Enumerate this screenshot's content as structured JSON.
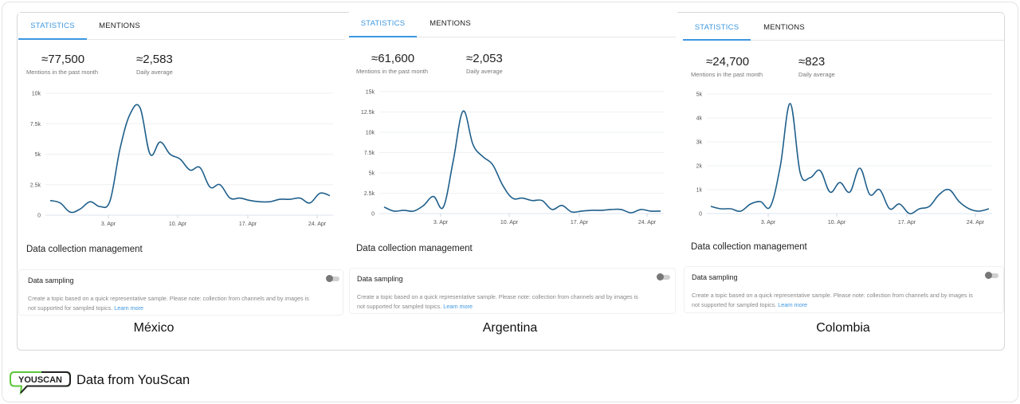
{
  "panels": [
    {
      "country": "México",
      "tabs": [
        {
          "label": "STATISTICS",
          "active": true
        },
        {
          "label": "MENTIONS",
          "active": false
        }
      ],
      "stats": {
        "mentions_value": "≈77,500",
        "mentions_label": "Mentions in the past month",
        "daily_value": "≈2,583",
        "daily_label": "Daily average"
      },
      "section_title": "Data collection management",
      "sampling": {
        "title": "Data sampling",
        "description": "Create a topic based on a quick representative sample. Please note: collection from channels and by images is not supported for sampled topics.",
        "link": "Learn more",
        "toggle_on": false
      }
    },
    {
      "country": "Argentina",
      "tabs": [
        {
          "label": "STATISTICS",
          "active": true
        },
        {
          "label": "MENTIONS",
          "active": false
        }
      ],
      "stats": {
        "mentions_value": "≈61,600",
        "mentions_label": "Mentions in the past month",
        "daily_value": "≈2,053",
        "daily_label": "Daily average"
      },
      "section_title": "Data collection management",
      "sampling": {
        "title": "Data sampling",
        "description": "Create a topic based on a quick representative sample. Please note: collection from channels and by images is not supported for sampled topics.",
        "link": "Learn more",
        "toggle_on": false
      }
    },
    {
      "country": "Colombia",
      "tabs": [
        {
          "label": "STATISTICS",
          "active": true
        },
        {
          "label": "MENTIONS",
          "active": false
        }
      ],
      "stats": {
        "mentions_value": "≈24,700",
        "mentions_label": "Mentions in the past month",
        "daily_value": "≈823",
        "daily_label": "Daily average"
      },
      "section_title": "Data collection management",
      "sampling": {
        "title": "Data sampling",
        "description": "Create a topic based on a quick representative sample. Please note: collection from channels and by images is not supported for sampled topics.",
        "link": "Learn more",
        "toggle_on": false
      }
    }
  ],
  "footer": {
    "logo_text": "YOUSCAN",
    "caption": "Data from YouScan"
  },
  "colors": {
    "accent": "#3d97e0",
    "line": "#1f5f8b",
    "grid": "#eef0f2",
    "logo_green": "#5cc83b"
  },
  "chart_data": [
    {
      "type": "line",
      "title": "México",
      "x": [
        "28 Mar",
        "29 Mar",
        "30 Mar",
        "31 Mar",
        "1 Apr",
        "2 Apr",
        "3 Apr",
        "4 Apr",
        "5 Apr",
        "6 Apr",
        "7 Apr",
        "8 Apr",
        "9 Apr",
        "10 Apr",
        "11 Apr",
        "12 Apr",
        "13 Apr",
        "14 Apr",
        "15 Apr",
        "16 Apr",
        "17 Apr",
        "18 Apr",
        "19 Apr",
        "20 Apr",
        "21 Apr",
        "22 Apr",
        "23 Apr",
        "24 Apr",
        "25 Apr"
      ],
      "series": [
        {
          "name": "Mentions",
          "values": [
            1200,
            1000,
            250,
            500,
            1100,
            700,
            1200,
            5500,
            8300,
            8800,
            5000,
            6000,
            5000,
            4600,
            3700,
            3900,
            2300,
            2500,
            1400,
            1400,
            1200,
            1100,
            1100,
            1300,
            1300,
            1400,
            1000,
            1800,
            1600
          ]
        }
      ],
      "xticks": [
        "3. Apr",
        "10. Apr",
        "17. Apr",
        "24. Apr"
      ],
      "yticks": [
        "0",
        "2.5k",
        "5k",
        "7.5k",
        "10k"
      ],
      "ylim": [
        0,
        10000
      ],
      "xlabel": "",
      "ylabel": "",
      "grid": true,
      "legend": "none"
    },
    {
      "type": "line",
      "title": "Argentina",
      "x": [
        "28 Mar",
        "29 Mar",
        "30 Mar",
        "31 Mar",
        "1 Apr",
        "2 Apr",
        "3 Apr",
        "4 Apr",
        "5 Apr",
        "6 Apr",
        "7 Apr",
        "8 Apr",
        "9 Apr",
        "10 Apr",
        "11 Apr",
        "12 Apr",
        "13 Apr",
        "14 Apr",
        "15 Apr",
        "16 Apr",
        "17 Apr",
        "18 Apr",
        "19 Apr",
        "20 Apr",
        "21 Apr",
        "22 Apr",
        "23 Apr",
        "24 Apr",
        "25 Apr"
      ],
      "series": [
        {
          "name": "Mentions",
          "values": [
            800,
            300,
            400,
            300,
            1000,
            2100,
            800,
            6500,
            12600,
            8500,
            7000,
            6000,
            3500,
            1900,
            1900,
            1600,
            1600,
            500,
            1000,
            200,
            300,
            400,
            400,
            500,
            500,
            100,
            500,
            300,
            300
          ]
        }
      ],
      "xticks": [
        "3. Apr",
        "10. Apr",
        "17. Apr",
        "24. Apr"
      ],
      "yticks": [
        "0",
        "2.5k",
        "5k",
        "7.5k",
        "10k",
        "12.5k",
        "15k"
      ],
      "ylim": [
        0,
        15000
      ],
      "xlabel": "",
      "ylabel": "",
      "grid": true,
      "legend": "none"
    },
    {
      "type": "line",
      "title": "Colombia",
      "x": [
        "28 Mar",
        "29 Mar",
        "30 Mar",
        "31 Mar",
        "1 Apr",
        "2 Apr",
        "3 Apr",
        "4 Apr",
        "5 Apr",
        "6 Apr",
        "7 Apr",
        "8 Apr",
        "9 Apr",
        "10 Apr",
        "11 Apr",
        "12 Apr",
        "13 Apr",
        "14 Apr",
        "15 Apr",
        "16 Apr",
        "17 Apr",
        "18 Apr",
        "19 Apr",
        "20 Apr",
        "21 Apr",
        "22 Apr",
        "23 Apr",
        "24 Apr",
        "25 Apr"
      ],
      "series": [
        {
          "name": "Mentions",
          "values": [
            300,
            200,
            200,
            100,
            400,
            500,
            300,
            2000,
            4600,
            1700,
            1500,
            1800,
            900,
            1300,
            900,
            1900,
            800,
            1000,
            200,
            400,
            0,
            200,
            300,
            800,
            1000,
            500,
            200,
            100,
            200
          ]
        }
      ],
      "xticks": [
        "3. Apr",
        "10. Apr",
        "17. Apr",
        "24. Apr"
      ],
      "yticks": [
        "0",
        "1k",
        "2k",
        "3k",
        "4k",
        "5k"
      ],
      "ylim": [
        0,
        5000
      ],
      "xlabel": "",
      "ylabel": "",
      "grid": true,
      "legend": "none"
    }
  ]
}
